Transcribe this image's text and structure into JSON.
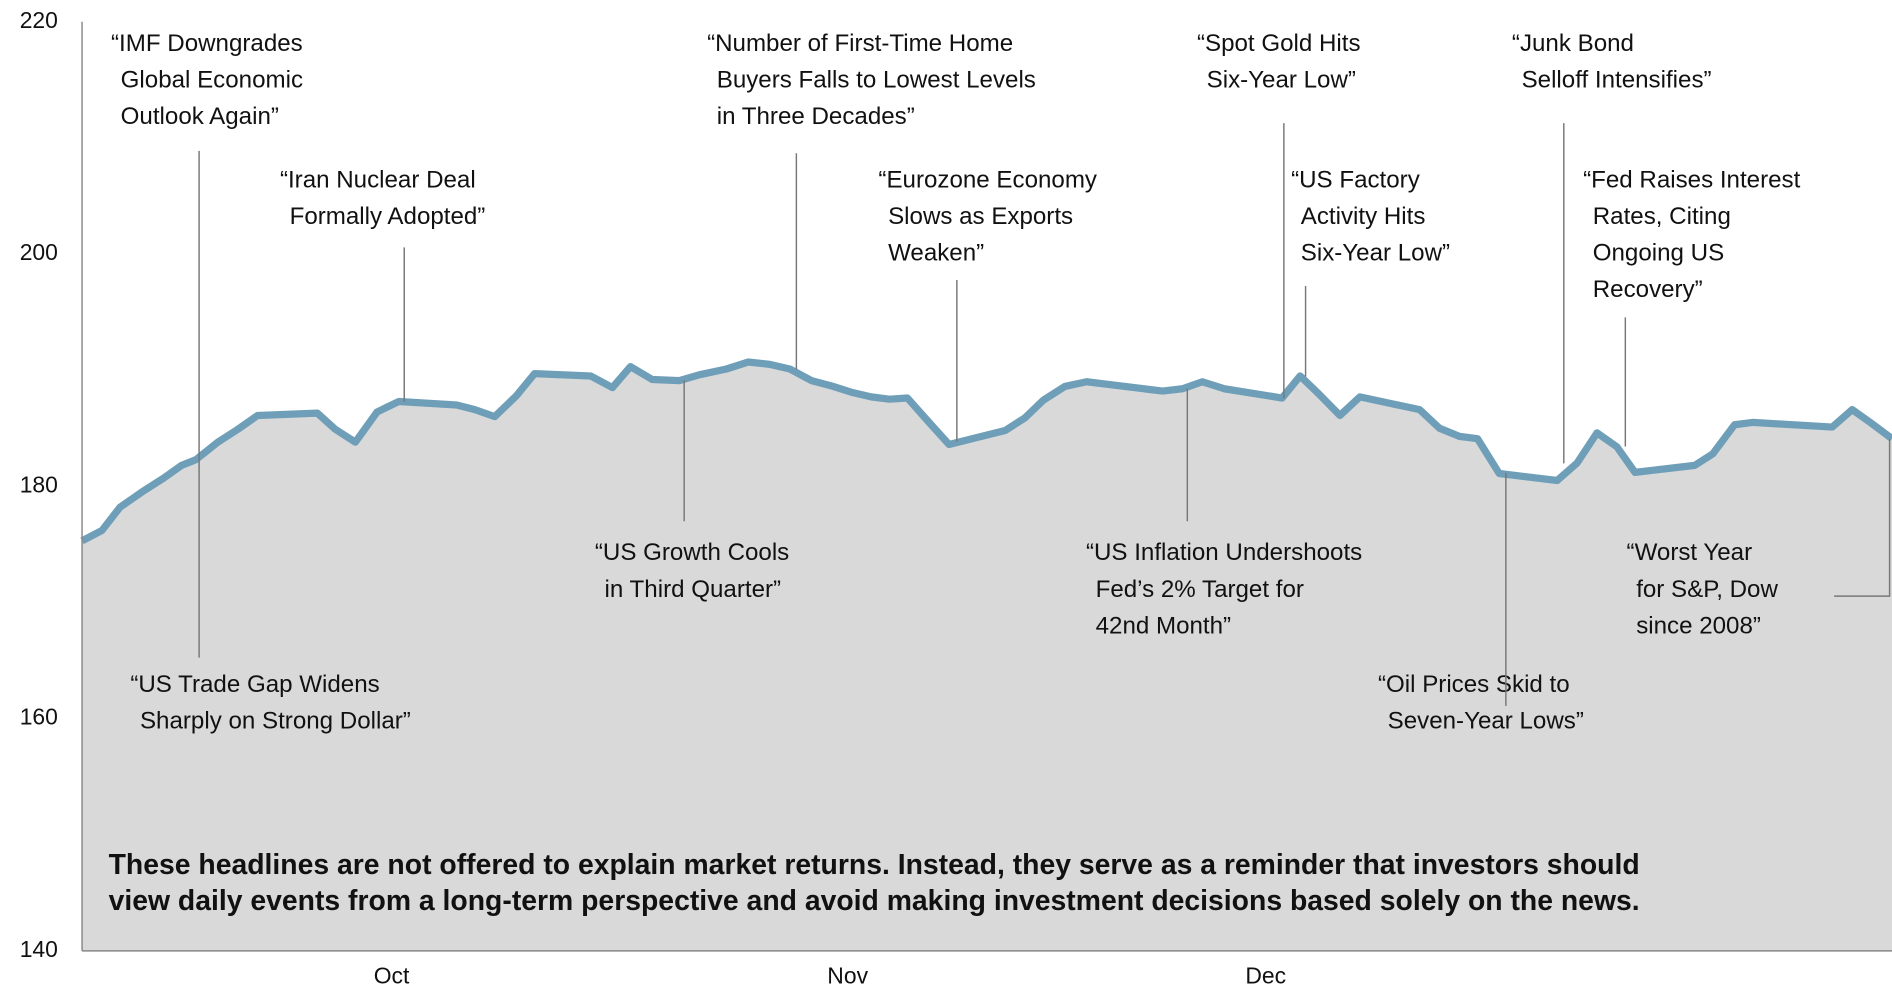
{
  "chart_data": {
    "type": "area",
    "x": [
      0,
      1.1,
      2.1,
      3.3,
      4.5,
      5.5,
      6.3,
      7.5,
      8.6,
      9.7,
      13.0,
      14.0,
      15.1,
      16.3,
      17.5,
      20.7,
      21.7,
      22.8,
      24.0,
      25.0,
      28.1,
      29.3,
      30.3,
      31.5,
      33.0,
      34.1,
      35.6,
      36.8,
      38.0,
      39.1,
      40.3,
      41.5,
      42.5,
      43.6,
      44.6,
      45.6,
      46.8,
      47.9,
      51.0,
      52.1,
      53.1,
      54.3,
      55.5,
      59.7,
      60.8,
      61.9,
      63.1,
      66.3,
      67.3,
      68.3,
      69.5,
      70.6,
      73.9,
      75.0,
      76.1,
      77.1,
      78.3,
      81.5,
      82.6,
      83.7,
      84.8,
      85.8,
      89.1,
      90.1,
      91.3,
      92.3,
      96.7,
      97.8,
      98.8,
      100.0
    ],
    "values": [
      175.3,
      176.2,
      178.2,
      179.5,
      180.7,
      181.8,
      182.3,
      183.8,
      184.9,
      186.1,
      186.3,
      184.9,
      183.8,
      186.4,
      187.3,
      187.0,
      186.6,
      186.0,
      187.8,
      189.7,
      189.5,
      188.5,
      190.3,
      189.2,
      189.1,
      189.6,
      190.1,
      190.7,
      190.5,
      190.1,
      189.1,
      188.6,
      188.1,
      187.7,
      187.5,
      187.6,
      185.5,
      183.6,
      184.8,
      185.9,
      187.4,
      188.6,
      189.0,
      188.2,
      188.4,
      189.0,
      188.4,
      187.6,
      189.5,
      188.0,
      186.1,
      187.7,
      186.6,
      185.0,
      184.3,
      184.1,
      181.1,
      180.5,
      182.0,
      184.6,
      183.4,
      181.2,
      181.8,
      182.8,
      185.3,
      185.5,
      185.1,
      186.6,
      185.5,
      184.1
    ],
    "color": "#6f9fb8",
    "area_color": "#d9d9d9",
    "xlim": [
      0,
      100
    ],
    "xticks": [
      {
        "value": 17.1,
        "label": "Oct"
      },
      {
        "value": 42.3,
        "label": "Nov"
      },
      {
        "value": 65.4,
        "label": "Dec"
      }
    ],
    "ylim": [
      140,
      220
    ],
    "yticks": [
      140,
      160,
      180,
      200,
      220
    ],
    "grid": false,
    "annotations": [
      {
        "lines": [
          "“IMF Downgrades",
          "Global Economic",
          "Outlook Again”"
        ]
      },
      {
        "lines": [
          "“US Trade Gap Widens",
          "Sharply on Strong Dollar”"
        ]
      },
      {
        "lines": [
          "“Iran Nuclear Deal",
          "Formally Adopted”"
        ]
      },
      {
        "lines": [
          "“Number of First-Time Home",
          "Buyers Falls to Lowest Levels",
          "in Three Decades”"
        ]
      },
      {
        "lines": [
          "“US Growth Cools",
          "in Third Quarter”"
        ]
      },
      {
        "lines": [
          "“Eurozone Economy",
          "Slows as Exports",
          "Weaken”"
        ]
      },
      {
        "lines": [
          "“Spot Gold Hits",
          "Six-Year Low”"
        ]
      },
      {
        "lines": [
          "“US Factory",
          "Activity Hits",
          "Six-Year Low”"
        ]
      },
      {
        "lines": [
          "“US Inflation Undershoots",
          "Fed’s 2% Target for",
          "42nd Month”"
        ]
      },
      {
        "lines": [
          "“Junk Bond",
          "Selloff Intensifies”"
        ]
      },
      {
        "lines": [
          "“Fed Raises Interest",
          "Rates, Citing",
          "Ongoing US",
          "Recovery”"
        ]
      },
      {
        "lines": [
          "“Oil Prices Skid to",
          "Seven-Year Lows”"
        ]
      },
      {
        "lines": [
          "“Worst Year",
          "for S&P, Dow",
          "since 2008”"
        ]
      }
    ],
    "footnote": [
      "These headlines are not offered to explain market returns. Instead, they serve as a reminder that investors should",
      "view daily events from a long-term perspective and avoid making investment decisions based solely on the news."
    ]
  }
}
